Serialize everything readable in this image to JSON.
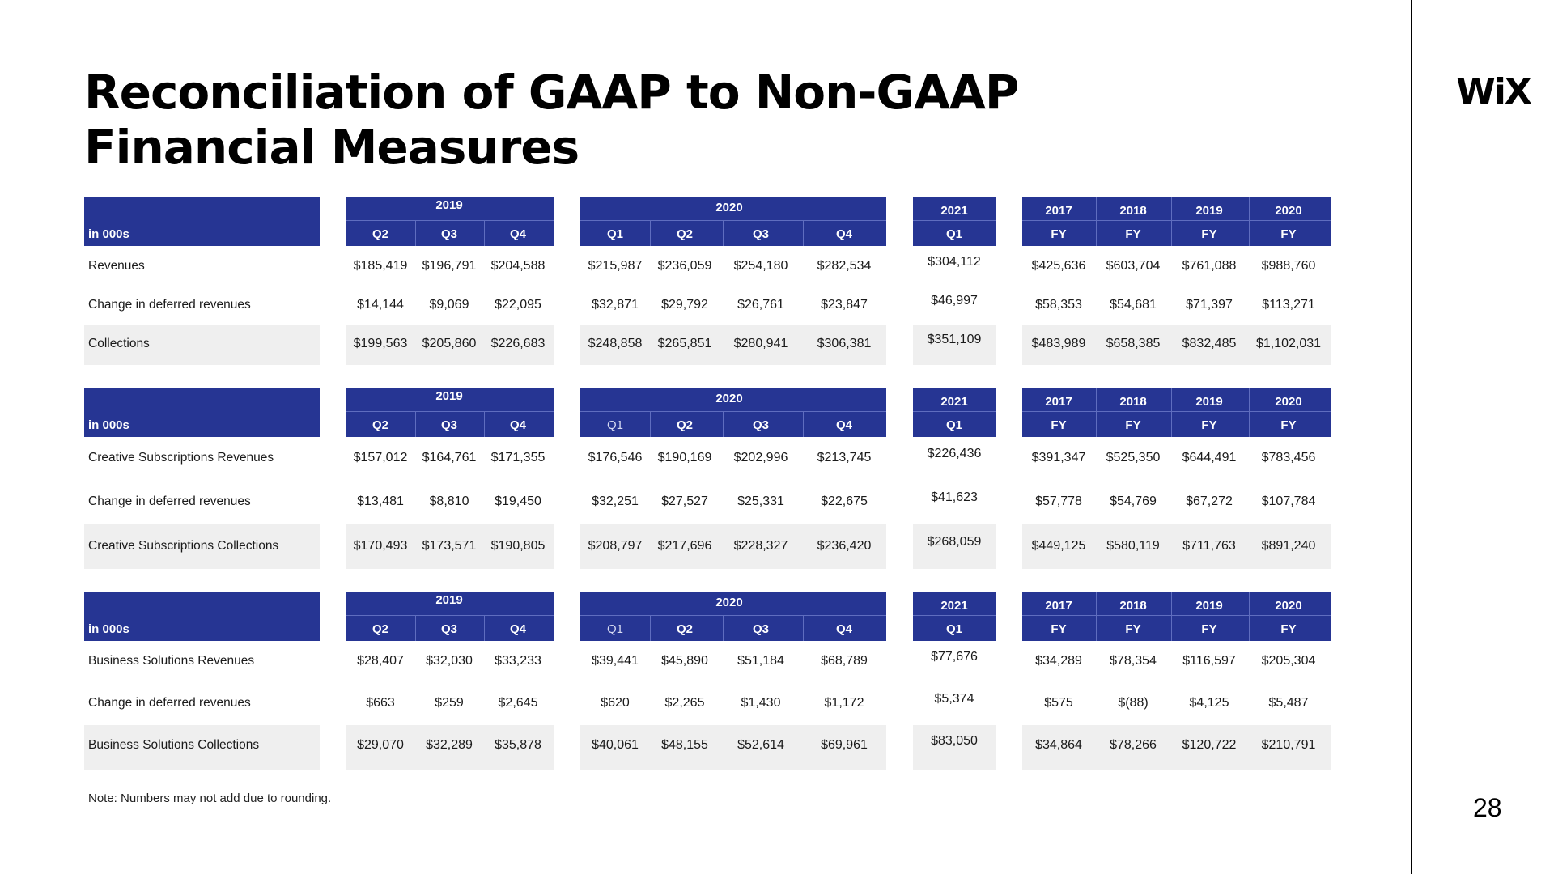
{
  "page": {
    "title_line1": "Reconciliation of GAAP to Non-GAAP",
    "title_line2": "Financial Measures",
    "logo": "WiX",
    "page_number": "28",
    "note": "Note: Numbers may not add due to rounding."
  },
  "sections": [
    {
      "units": "in 000s",
      "rows": [
        {
          "label": "Revenues",
          "y2019": [
            "$185,419",
            "$196,791",
            "$204,588"
          ],
          "y2020": [
            "$215,987",
            "$236,059",
            "$254,180",
            "$282,534"
          ],
          "y2021": "$304,112",
          "fy": [
            "$425,636",
            "$603,704",
            "$761,088",
            "$988,760"
          ]
        },
        {
          "label": "Change in deferred revenues",
          "y2019": [
            "$14,144",
            "$9,069",
            "$22,095"
          ],
          "y2020": [
            "$32,871",
            "$29,792",
            "$26,761",
            "$23,847"
          ],
          "y2021": "$46,997",
          "fy": [
            "$58,353",
            "$54,681",
            "$71,397",
            "$113,271"
          ]
        },
        {
          "label": "Collections",
          "y2019": [
            "$199,563",
            "$205,860",
            "$226,683"
          ],
          "y2020": [
            "$248,858",
            "$265,851",
            "$280,941",
            "$306,381"
          ],
          "y2021": "$351,109",
          "fy": [
            "$483,989",
            "$658,385",
            "$832,485",
            "$1,102,031"
          ]
        }
      ]
    },
    {
      "units": "in 000s",
      "rows": [
        {
          "label": "Creative Subscriptions Revenues",
          "y2019": [
            "$157,012",
            "$164,761",
            "$171,355"
          ],
          "y2020": [
            "$176,546",
            "$190,169",
            "$202,996",
            "$213,745"
          ],
          "y2021": "$226,436",
          "fy": [
            "$391,347",
            "$525,350",
            "$644,491",
            "$783,456"
          ]
        },
        {
          "label": "Change in deferred revenues",
          "y2019": [
            "$13,481",
            "$8,810",
            "$19,450"
          ],
          "y2020": [
            "$32,251",
            "$27,527",
            "$25,331",
            "$22,675"
          ],
          "y2021": "$41,623",
          "fy": [
            "$57,778",
            "$54,769",
            "$67,272",
            "$107,784"
          ]
        },
        {
          "label": "Creative Subscriptions Collections",
          "y2019": [
            "$170,493",
            "$173,571",
            "$190,805"
          ],
          "y2020": [
            "$208,797",
            "$217,696",
            "$228,327",
            "$236,420"
          ],
          "y2021": "$268,059",
          "fy": [
            "$449,125",
            "$580,119",
            "$711,763",
            "$891,240"
          ]
        }
      ]
    },
    {
      "units": "in 000s",
      "rows": [
        {
          "label": "Business Solutions Revenues",
          "y2019": [
            "$28,407",
            "$32,030",
            "$33,233"
          ],
          "y2020": [
            "$39,441",
            "$45,890",
            "$51,184",
            "$68,789"
          ],
          "y2021": "$77,676",
          "fy": [
            "$34,289",
            "$78,354",
            "$116,597",
            "$205,304"
          ]
        },
        {
          "label": "Change in deferred revenues",
          "y2019": [
            "$663",
            "$259",
            "$2,645"
          ],
          "y2020": [
            "$620",
            "$2,265",
            "$1,430",
            "$1,172"
          ],
          "y2021": "$5,374",
          "fy": [
            "$575",
            "$(88)",
            "$4,125",
            "$5,487"
          ]
        },
        {
          "label": "Business Solutions Collections",
          "y2019": [
            "$29,070",
            "$32,289",
            "$35,878"
          ],
          "y2020": [
            "$40,061",
            "$48,155",
            "$52,614",
            "$69,961"
          ],
          "y2021": "$83,050",
          "fy": [
            "$34,864",
            "$78,266",
            "$120,722",
            "$210,791"
          ]
        }
      ]
    }
  ],
  "headers": {
    "year_2019": "2019",
    "year_2020": "2020",
    "year_2021": "2021",
    "q2019": [
      "Q2",
      "Q3",
      "Q4"
    ],
    "q2020": [
      "Q1",
      "Q2",
      "Q3",
      "Q4"
    ],
    "q2021": "Q1",
    "fy_years": [
      "2017",
      "2018",
      "2019",
      "2020"
    ],
    "fy_label": "FY"
  },
  "colors": {
    "header_blue": "#263593",
    "row_shade": "#efefef"
  }
}
